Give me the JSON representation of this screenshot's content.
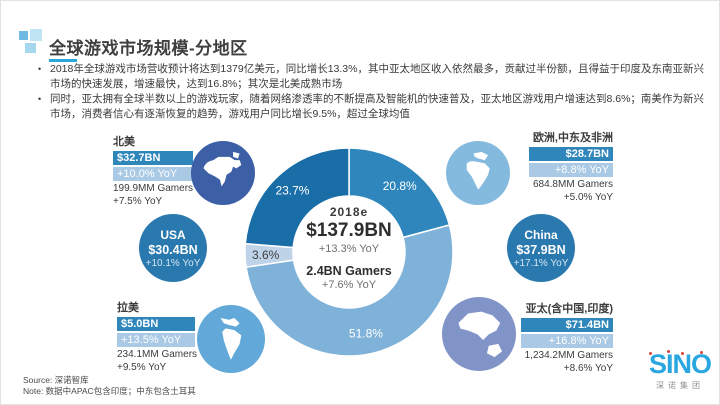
{
  "header": {
    "title": "全球游戏市场规模-分地区",
    "accent_color": "#29a8dc"
  },
  "bullets": [
    "2018年全球游戏市场营收预计将达到1379亿美元，同比增长13.3%，其中亚太地区收入依然最多，贡献过半份额，且得益于印度及东南亚新兴市场的快速发展，增速最快，达到16.8%；其次是北美成熟市场",
    "同时，亚太拥有全球半数以上的游戏玩家，随着网络渗透率的不断提高及智能机的快速普及，亚太地区游戏用户增速达到8.6%；南美作为新兴市场，消费者信心有逐渐恢复的趋势，游戏用户同比增长9.5%，超过全球均值"
  ],
  "chart_data": {
    "type": "pie",
    "subtype": "donut",
    "title": "全球游戏市场规模-分地区 (share of 2018e global games market revenue)",
    "start_angle_deg": 0,
    "clockwise": true,
    "slices": [
      {
        "id": "emea",
        "label": "欧洲,中东及非洲",
        "value": 20.8,
        "color": "#2e86bd",
        "label_color": "#ffffff"
      },
      {
        "id": "apac",
        "label": "亚太(含中国,印度)",
        "value": 51.8,
        "color": "#7fb2d9",
        "label_color": "#ffffff"
      },
      {
        "id": "latam",
        "label": "拉美",
        "value": 3.6,
        "color": "#bed2e8",
        "label_color": "#3f3f3f"
      },
      {
        "id": "na",
        "label": "北美",
        "value": 23.7,
        "color": "#1a6ea8",
        "label_color": "#ffffff"
      }
    ],
    "center_label": {
      "year": "2018e",
      "revenue": "$137.9BN",
      "revenue_yoy": "+13.3% YoY",
      "gamers": "2.4BN Gamers",
      "gamers_yoy": "+7.6% YoY"
    }
  },
  "regions": {
    "na": {
      "label": "北美",
      "revenue": "$32.7BN",
      "revenue_yoy": "+10.0% YoY",
      "gamers": "199.9MM Gamers",
      "gamers_yoy": "+7.5% YoY",
      "icon": "north-america-map-icon",
      "circle_color": "#3c5fa6"
    },
    "emea": {
      "label": "欧洲,中东及非洲",
      "revenue": "$28.7BN",
      "revenue_yoy": "+8.8% YoY",
      "gamers": "684.8MM Gamers",
      "gamers_yoy": "+5.0% YoY",
      "icon": "europe-africa-map-icon",
      "circle_color": "#85badf"
    },
    "usa": {
      "label": "USA",
      "revenue": "$30.4BN",
      "revenue_yoy": "+10.1% YoY",
      "circle_color": "#2a79ae"
    },
    "china": {
      "label": "China",
      "revenue": "$37.9BN",
      "revenue_yoy": "+17.1% YoY",
      "circle_color": "#2a79ae"
    },
    "latam": {
      "label": "拉美",
      "revenue": "$5.0BN",
      "revenue_yoy": "+13.5% YoY",
      "gamers": "234.1MM Gamers",
      "gamers_yoy": "+9.5% YoY",
      "icon": "south-america-map-icon",
      "circle_color": "#62a9da"
    },
    "apac": {
      "label": "亚太(含中国,印度)",
      "revenue": "$71.4BN",
      "revenue_yoy": "+16.8% YoY",
      "gamers": "1,234.2MM Gamers",
      "gamers_yoy": "+8.6% YoY",
      "icon": "asia-pacific-map-icon",
      "circle_color": "#8194c8"
    }
  },
  "styles": {
    "bar_dark": "#2f86bb",
    "bar_light": "#a9c9e5",
    "accent": "#29a8dc"
  },
  "footer": {
    "source": "Source: 深诺智库",
    "note": "Note: 数据中APAC包含印度；中东包含土耳其"
  },
  "logo": {
    "name": "SINO",
    "subtitle": "深诺集团",
    "color": "#2aa7e0",
    "accent_red": "#d9453a"
  }
}
